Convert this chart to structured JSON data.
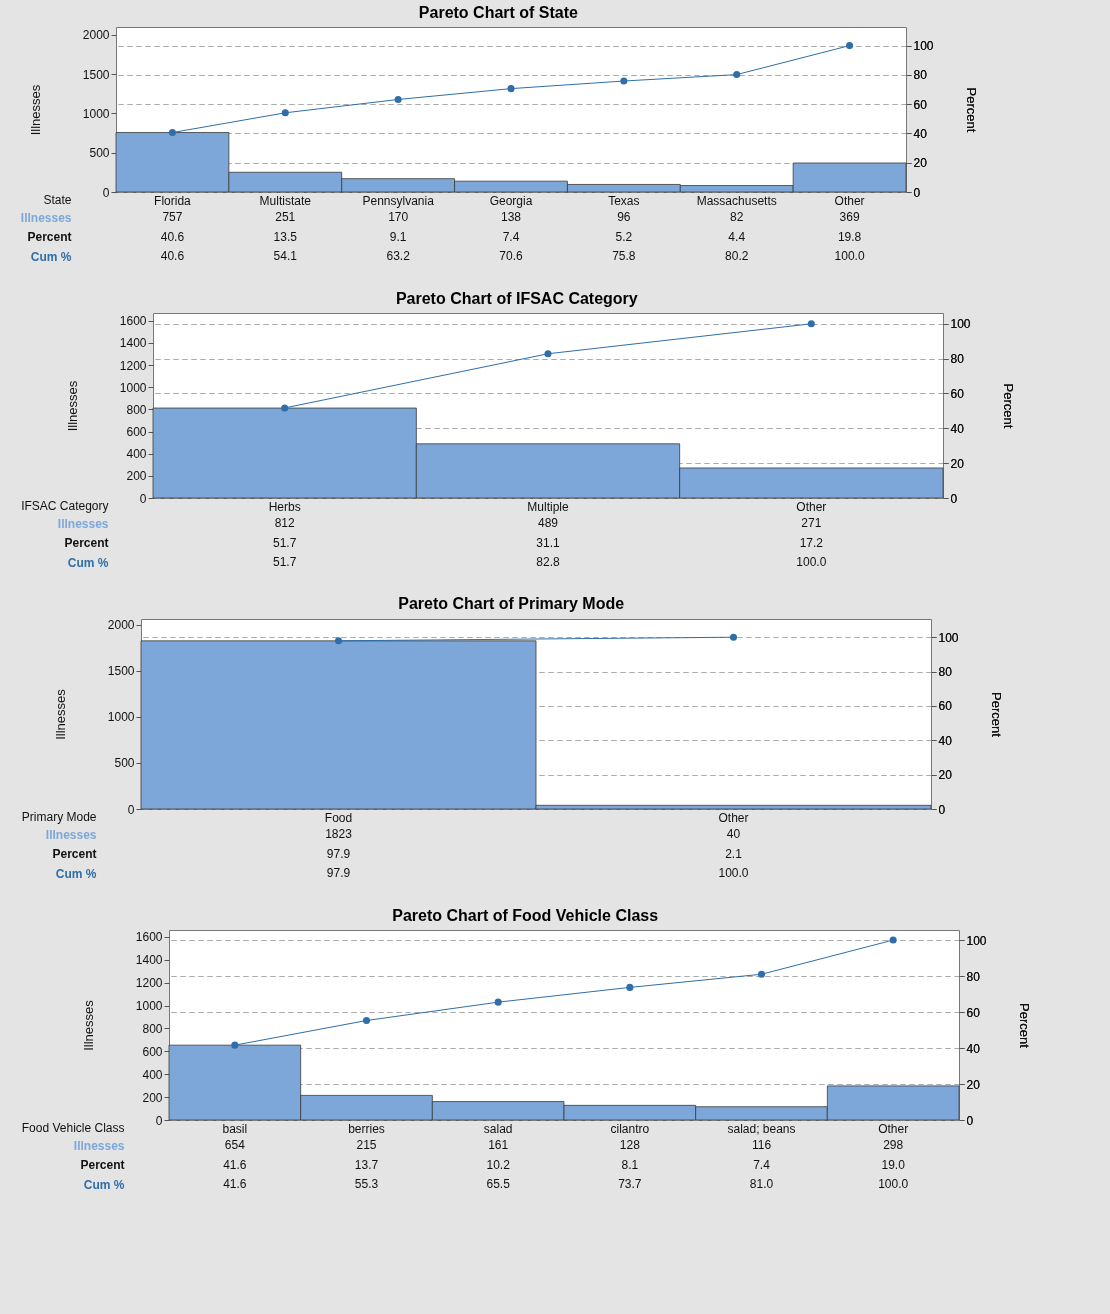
{
  "chart_data": [
    {
      "type": "bar",
      "title": "Pareto Chart of State",
      "xlabel": "State",
      "ylabel": "Illnesses",
      "y2label": "Percent",
      "categories": [
        "Florida",
        "Multistate",
        "Pennsylvania",
        "Georgia",
        "Texas",
        "Massachusetts",
        "Other"
      ],
      "ylim": [
        0,
        2100
      ],
      "yticks": [
        0,
        500,
        1000,
        1500,
        2000
      ],
      "y2lim": [
        0,
        112.7
      ],
      "y2ticks": [
        0,
        20,
        40,
        60,
        80,
        100
      ],
      "grid": true,
      "annotations": [
        "Percent",
        "40.6",
        "13.5",
        "9.1",
        "7.4",
        "5.2",
        "4.4",
        "19.8"
      ],
      "series": [
        {
          "name": "Illnesses",
          "type": "bar",
          "color": "#7da7d9",
          "values": [
            757,
            251,
            170,
            138,
            96,
            82,
            369
          ],
          "value_labels": [
            "757",
            "251",
            "170",
            "138",
            "96",
            "82",
            "369"
          ]
        },
        {
          "name": "Cum %",
          "type": "line",
          "axis": "y2",
          "marker": "circle",
          "color": "#2f6ea8",
          "values": [
            40.6,
            54.1,
            63.2,
            70.6,
            75.8,
            80.2,
            100.0
          ],
          "value_labels": [
            "40.6",
            "54.1",
            "63.2",
            "70.6",
            "75.8",
            "80.2",
            "100.0"
          ]
        }
      ]
    },
    {
      "type": "bar",
      "title": "Pareto Chart of IFSAC Category",
      "xlabel": "IFSAC Category",
      "ylabel": "Illnesses",
      "y2label": "Percent",
      "categories": [
        "Herbs",
        "Multiple",
        "Other"
      ],
      "ylim": [
        0,
        1670
      ],
      "yticks": [
        0,
        200,
        400,
        600,
        800,
        1000,
        1200,
        1400,
        1600
      ],
      "y2lim": [
        0,
        106.2
      ],
      "y2ticks": [
        0,
        20,
        40,
        60,
        80,
        100
      ],
      "grid": true,
      "annotations": [
        "Percent",
        "51.7",
        "31.1",
        "17.2"
      ],
      "series": [
        {
          "name": "Illnesses",
          "type": "bar",
          "color": "#7da7d9",
          "values": [
            812,
            489,
            271
          ],
          "value_labels": [
            "812",
            "489",
            "271"
          ]
        },
        {
          "name": "Cum %",
          "type": "line",
          "axis": "y2",
          "marker": "circle",
          "color": "#2f6ea8",
          "values": [
            51.7,
            82.8,
            100.0
          ],
          "value_labels": [
            "51.7",
            "82.8",
            "100.0"
          ]
        }
      ]
    },
    {
      "type": "bar",
      "title": "Pareto Chart of Primary Mode",
      "xlabel": "Primary Mode",
      "ylabel": "Illnesses",
      "y2label": "Percent",
      "categories": [
        "Food",
        "Other"
      ],
      "ylim": [
        0,
        2060
      ],
      "yticks": [
        0,
        500,
        1000,
        1500,
        2000
      ],
      "y2lim": [
        0,
        110.6
      ],
      "y2ticks": [
        0,
        20,
        40,
        60,
        80,
        100
      ],
      "grid": true,
      "annotations": [
        "Percent",
        "97.9",
        "2.1"
      ],
      "series": [
        {
          "name": "Illnesses",
          "type": "bar",
          "color": "#7da7d9",
          "values": [
            1823,
            40
          ],
          "value_labels": [
            "1823",
            "40"
          ]
        },
        {
          "name": "Cum %",
          "type": "line",
          "axis": "y2",
          "marker": "circle",
          "color": "#2f6ea8",
          "values": [
            97.9,
            100.0
          ],
          "value_labels": [
            "97.9",
            "100.0"
          ]
        }
      ]
    },
    {
      "type": "bar",
      "title": "Pareto Chart of Food Vehicle Class",
      "xlabel": "Food Vehicle Class",
      "ylabel": "Illnesses",
      "y2label": "Percent",
      "categories": [
        "basil",
        "berries",
        "salad",
        "cilantro",
        "salad; beans",
        "Other"
      ],
      "ylim": [
        0,
        1660
      ],
      "yticks": [
        0,
        200,
        400,
        600,
        800,
        1000,
        1200,
        1400,
        1600
      ],
      "y2lim": [
        0,
        105.6
      ],
      "y2ticks": [
        0,
        20,
        40,
        60,
        80,
        100
      ],
      "grid": true,
      "annotations": [
        "Percent",
        "41.6",
        "13.7",
        "10.2",
        "8.1",
        "7.4",
        "19.0"
      ],
      "series": [
        {
          "name": "Illnesses",
          "type": "bar",
          "color": "#7da7d9",
          "values": [
            654,
            215,
            161,
            128,
            116,
            298
          ],
          "value_labels": [
            "654",
            "215",
            "161",
            "128",
            "116",
            "298"
          ]
        },
        {
          "name": "Cum %",
          "type": "line",
          "axis": "y2",
          "marker": "circle",
          "color": "#2f6ea8",
          "values": [
            41.6,
            55.3,
            65.5,
            73.7,
            81.0,
            100.0
          ],
          "value_labels": [
            "41.6",
            "55.3",
            "65.5",
            "73.7",
            "81.0",
            "100.0"
          ]
        }
      ]
    }
  ]
}
